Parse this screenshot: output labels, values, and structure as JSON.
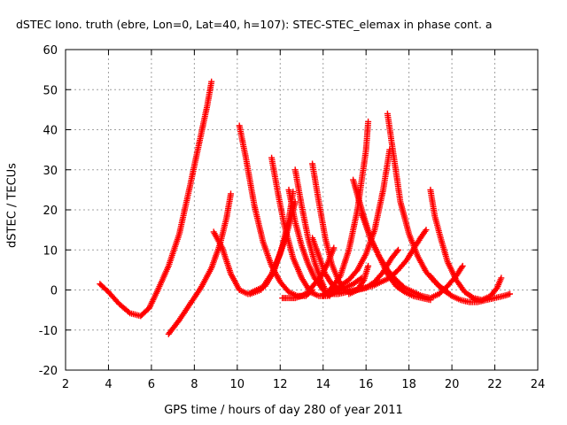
{
  "chart_data": {
    "type": "scatter",
    "title": "dSTEC Iono. truth (ebre, Lon=0, Lat=40, h=107): STEC-STEC_elemax in phase cont. a",
    "xlabel": "GPS time / hours of day 280 of year 2011",
    "ylabel": "dSTEC  / TECUs",
    "xlim": [
      2,
      24
    ],
    "ylim": [
      -20,
      60
    ],
    "xticks": [
      2,
      4,
      6,
      8,
      10,
      12,
      14,
      16,
      18,
      20,
      22,
      24
    ],
    "yticks": [
      -20,
      -10,
      0,
      10,
      20,
      30,
      40,
      50,
      60
    ],
    "grid": true,
    "marker": "+",
    "color": "#ff0000",
    "series": [
      {
        "x": [
          3.6,
          4.0,
          4.5,
          5.0,
          5.5,
          5.9,
          6.3,
          6.8,
          7.3,
          7.8,
          8.2,
          8.6,
          8.8
        ],
        "y": [
          1.5,
          -0.5,
          -3.5,
          -5.8,
          -6.5,
          -4.5,
          0,
          6,
          14,
          26,
          36,
          46,
          52
        ]
      },
      {
        "x": [
          6.8,
          7.3,
          7.8,
          8.3,
          8.8,
          9.2,
          9.5,
          9.7
        ],
        "y": [
          -11,
          -7.5,
          -3.5,
          0.5,
          5.5,
          11.5,
          18,
          24
        ]
      },
      {
        "x": [
          8.9,
          9.3,
          9.7,
          10.1,
          10.5,
          10.9,
          11.3,
          11.7,
          12.1,
          12.4,
          12.6
        ],
        "y": [
          14.5,
          10.5,
          4,
          0,
          -1,
          0,
          1,
          4.5,
          11,
          17.5,
          24.5
        ]
      },
      {
        "x": [
          10.1,
          10.4,
          10.8,
          11.2,
          11.6,
          12.0,
          12.4,
          12.8,
          13.2,
          13.5
        ],
        "y": [
          41,
          33,
          21,
          12,
          6,
          2,
          -0.5,
          -1.5,
          -1.5,
          0
        ]
      },
      {
        "x": [
          11.6,
          11.9,
          12.2,
          12.6,
          13.0,
          13.4,
          13.8,
          14.2,
          14.6,
          15.0,
          15.4,
          15.8
        ],
        "y": [
          33,
          24,
          16,
          8,
          3,
          -0.5,
          -1.5,
          -1.5,
          -0.5,
          0.5,
          1.5,
          3
        ]
      },
      {
        "x": [
          12.4,
          12.7,
          13.0,
          13.3,
          13.6,
          14.0,
          14.3
        ],
        "y": [
          25,
          17,
          11,
          6.5,
          3,
          0,
          -1.5
        ]
      },
      {
        "x": [
          12.7,
          13.0,
          13.3,
          13.6,
          13.9,
          14.1
        ],
        "y": [
          30,
          21,
          13,
          7,
          2.5,
          0
        ]
      },
      {
        "x": [
          12.7,
          12.5,
          12.3,
          12.0,
          11.6,
          11.1,
          10.6
        ],
        "y": [
          22,
          18,
          14,
          9,
          4,
          0,
          -1
        ]
      },
      {
        "x": [
          13.5,
          13.8,
          14.1,
          14.4,
          14.7,
          15.0,
          15.3,
          15.6,
          15.9,
          16.1
        ],
        "y": [
          31.5,
          22,
          13,
          6.5,
          2.5,
          0,
          -0.5,
          0,
          2.5,
          6
        ]
      },
      {
        "x": [
          13.5,
          13.8,
          14.1,
          14.4,
          14.6
        ],
        "y": [
          13,
          8.5,
          4,
          1.5,
          0.5
        ]
      },
      {
        "x": [
          14.5,
          14.2,
          13.9,
          13.6,
          13.3,
          13.0,
          12.7,
          12.4,
          12.1
        ],
        "y": [
          10.5,
          6.5,
          3.5,
          1.5,
          -0.5,
          -1.5,
          -2,
          -2,
          -2
        ]
      },
      {
        "x": [
          14.0,
          14.4,
          14.8,
          15.2,
          15.6,
          16.0,
          16.1
        ],
        "y": [
          -1.5,
          0.5,
          3.5,
          10,
          20,
          35,
          42
        ]
      },
      {
        "x": [
          15.4,
          15.8,
          16.2,
          16.6,
          17.0,
          17.4,
          17.8,
          18.2,
          18.6,
          19.0
        ],
        "y": [
          27.5,
          20,
          13,
          8.5,
          4,
          1,
          -0.5,
          -1.5,
          -2,
          -2.5
        ]
      },
      {
        "x": [
          14.0,
          14.4,
          14.8,
          15.2,
          15.6,
          16.0,
          16.4,
          16.8,
          17.1
        ],
        "y": [
          -1,
          0,
          1,
          2.5,
          5,
          9,
          15,
          25,
          35
        ]
      },
      {
        "x": [
          15.2,
          15.6,
          16.0,
          16.4,
          16.8,
          17.2,
          17.5
        ],
        "y": [
          -1,
          0,
          0.5,
          2,
          4.5,
          8,
          10
        ]
      },
      {
        "x": [
          14.3,
          14.7,
          15.1,
          15.5,
          15.9,
          16.3,
          16.7,
          17.1,
          17.5,
          17.9,
          18.3,
          18.6,
          18.8
        ],
        "y": [
          -1,
          -1,
          -0.5,
          0,
          0.5,
          1,
          2,
          3,
          5,
          7.5,
          11,
          13.5,
          15
        ]
      },
      {
        "x": [
          17.0,
          17.3,
          17.6,
          18.0,
          18.4,
          18.8,
          19.2,
          19.6,
          20.0,
          20.4,
          20.8,
          21.2,
          21.6,
          22.0,
          22.4,
          22.7
        ],
        "y": [
          44,
          33,
          22,
          14,
          8.5,
          4.5,
          2,
          0,
          -1.5,
          -2.5,
          -3,
          -3,
          -2.5,
          -2,
          -1.5,
          -1
        ]
      },
      {
        "x": [
          15.8,
          16.2,
          16.6,
          17.0,
          17.4,
          17.8,
          18.2,
          18.6,
          19.0,
          19.4,
          19.8,
          20.2,
          20.5
        ],
        "y": [
          19,
          13,
          8.5,
          5,
          2.5,
          0.5,
          -0.5,
          -1.5,
          -2,
          -1,
          1,
          3.5,
          6
        ]
      },
      {
        "x": [
          19.0,
          19.2,
          19.5,
          19.8,
          20.2,
          20.6,
          21.0,
          21.4,
          21.8,
          22.1,
          22.3
        ],
        "y": [
          25,
          18.5,
          12.5,
          7,
          2.5,
          -0.5,
          -2,
          -2.5,
          -1.5,
          0.5,
          3
        ]
      },
      {
        "x": [
          19.0,
          19.4,
          19.8
        ],
        "y": [
          3.5,
          1,
          -0.5
        ]
      }
    ]
  }
}
